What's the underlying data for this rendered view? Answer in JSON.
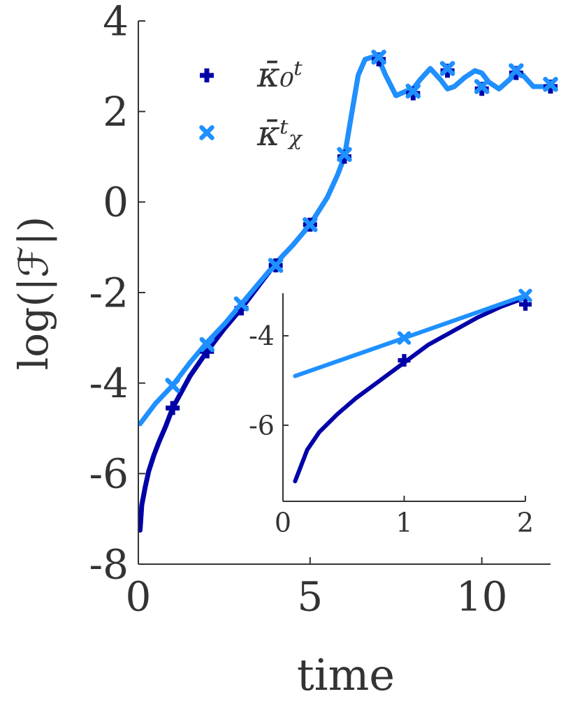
{
  "chart_data": [
    {
      "type": "line",
      "xlabel": "time",
      "ylabel": "log(|ℱ|)",
      "xlim": [
        0,
        12
      ],
      "ylim": [
        -8,
        4
      ],
      "xticks": [
        0,
        5,
        10
      ],
      "yticks": [
        -8,
        -6,
        -4,
        -2,
        0,
        2,
        4
      ],
      "legend": {
        "placement": "top-left",
        "entries": [
          "κ̄₀ᵗ",
          "κ̄ᵗᵪ"
        ]
      },
      "series": [
        {
          "name": "κ̄₀ᵗ",
          "color": "#0000a8",
          "marker": "plus",
          "line": {
            "x": [
              0.05,
              0.1,
              0.2,
              0.3,
              0.45,
              0.6,
              0.8,
              1,
              1.5,
              2,
              2.5,
              3,
              3.5,
              4,
              4.5,
              5,
              5.5,
              5.8,
              6,
              6.2,
              6.4,
              6.6,
              6.8,
              7,
              7.2,
              7.5,
              7.8,
              8,
              8.2,
              8.5,
              8.8,
              9,
              9.2,
              9.5,
              9.8,
              10,
              10.2,
              10.5,
              10.8,
              11,
              11.2,
              11.5,
              11.8,
              12
            ],
            "y": [
              -7.25,
              -6.7,
              -6.3,
              -5.95,
              -5.6,
              -5.3,
              -4.95,
              -4.55,
              -3.85,
              -3.3,
              -2.8,
              -2.35,
              -1.85,
              -1.35,
              -0.95,
              -0.5,
              0.1,
              0.6,
              1,
              1.9,
              2.8,
              3.15,
              3.2,
              3.15,
              2.8,
              2.35,
              2.45,
              2.5,
              2.7,
              2.95,
              2.7,
              2.5,
              2.55,
              2.75,
              2.9,
              2.85,
              2.65,
              2.5,
              2.7,
              2.85,
              2.8,
              2.55,
              2.55,
              2.55
            ]
          },
          "markers": {
            "x": [
              1,
              2,
              3,
              4,
              5,
              6,
              7,
              8,
              9,
              10,
              11,
              12
            ],
            "y": [
              -4.55,
              -3.3,
              -2.35,
              -1.4,
              -0.5,
              1.0,
              3.15,
              2.4,
              2.9,
              2.5,
              2.85,
              2.55
            ]
          }
        },
        {
          "name": "κ̄ᵗᵪ",
          "color": "#1e90ff",
          "marker": "x",
          "line": {
            "x": [
              0.05,
              0.5,
              1,
              1.5,
              2,
              2.5,
              3,
              3.5,
              4,
              4.5,
              5,
              5.5,
              5.8,
              6,
              6.2,
              6.4,
              6.6,
              6.8,
              7,
              7.2,
              7.5,
              7.8,
              8,
              8.2,
              8.5,
              8.8,
              9,
              9.2,
              9.5,
              9.8,
              10,
              10.2,
              10.5,
              10.8,
              11,
              11.2,
              11.5,
              11.8,
              12
            ],
            "y": [
              -4.9,
              -4.45,
              -4.05,
              -3.55,
              -3.1,
              -2.7,
              -2.25,
              -1.8,
              -1.35,
              -0.95,
              -0.5,
              0.1,
              0.6,
              1,
              1.9,
              2.8,
              3.15,
              3.2,
              3.15,
              2.8,
              2.35,
              2.45,
              2.5,
              2.7,
              2.95,
              2.7,
              2.5,
              2.55,
              2.75,
              2.9,
              2.85,
              2.65,
              2.5,
              2.7,
              2.85,
              2.8,
              2.55,
              2.55,
              2.55
            ]
          },
          "markers": {
            "x": [
              1,
              2,
              3,
              4,
              5,
              6,
              7,
              8,
              9,
              10,
              11,
              12
            ],
            "y": [
              -4.05,
              -3.15,
              -2.25,
              -1.4,
              -0.5,
              1.05,
              3.2,
              2.45,
              2.95,
              2.55,
              2.9,
              2.6
            ]
          }
        }
      ]
    },
    {
      "type": "line",
      "inset": true,
      "xlim": [
        0,
        2
      ],
      "ylim": [
        -7.7,
        -3.05
      ],
      "xticks": [
        0,
        1,
        2
      ],
      "yticks": [
        -6,
        -4
      ],
      "series": [
        {
          "name": "κ̄₀ᵗ",
          "color": "#0000a8",
          "marker": "plus",
          "line": {
            "x": [
              0.1,
              0.2,
              0.3,
              0.45,
              0.6,
              0.8,
              1,
              1.2,
              1.4,
              1.6,
              1.8,
              2
            ],
            "y": [
              -7.25,
              -6.55,
              -6.15,
              -5.75,
              -5.4,
              -5.0,
              -4.6,
              -4.2,
              -3.9,
              -3.6,
              -3.35,
              -3.15
            ]
          },
          "markers": {
            "x": [
              1,
              2
            ],
            "y": [
              -4.55,
              -3.3
            ]
          }
        },
        {
          "name": "κ̄ᵗᵪ",
          "color": "#1e90ff",
          "marker": "x",
          "line": {
            "x": [
              0.1,
              1,
              2
            ],
            "y": [
              -4.9,
              -4.05,
              -3.1
            ]
          },
          "markers": {
            "x": [
              1,
              2
            ],
            "y": [
              -4.05,
              -3.1
            ]
          }
        }
      ]
    }
  ]
}
